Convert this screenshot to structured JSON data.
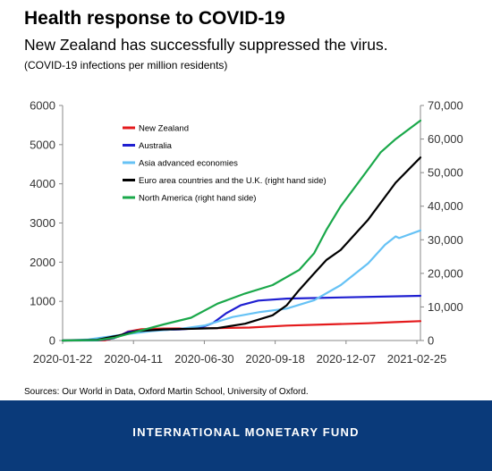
{
  "header": {
    "title": "Health response to COVID-19",
    "subtitle": "New Zealand has successfully suppressed the virus.",
    "note": "(COVID-19 infections per million residents)"
  },
  "source": "Sources: Our World in Data, Oxford Martin School, University of Oxford.",
  "footer": {
    "org": "INTERNATIONAL MONETARY FUND"
  },
  "chart_data": {
    "type": "line",
    "x_ticks": [
      "2020-01-22",
      "2020-04-11",
      "2020-06-30",
      "2020-09-18",
      "2020-12-07",
      "2021-02-25"
    ],
    "x_range": [
      "2020-01-22",
      "2021-03-01"
    ],
    "y_left": {
      "ticks": [
        "0",
        "1000",
        "2000",
        "3000",
        "4000",
        "5000",
        "6000"
      ],
      "range": [
        0,
        6000
      ]
    },
    "y_right": {
      "ticks": [
        "0",
        "10,000",
        "20,000",
        "30,000",
        "40,000",
        "50,000",
        "60,000",
        "70,000"
      ],
      "range": [
        0,
        70000
      ]
    },
    "legend_position": "upper-left",
    "grid": false,
    "series": [
      {
        "name": "New Zealand",
        "axis": "left",
        "color": "#e41a1c",
        "x": [
          "2020-01-22",
          "2020-03-10",
          "2020-03-25",
          "2020-04-05",
          "2020-04-20",
          "2020-05-15",
          "2020-07-01",
          "2020-08-20",
          "2020-10-01",
          "2020-11-15",
          "2021-01-01",
          "2021-02-01",
          "2021-03-01"
        ],
        "y": [
          0,
          5,
          100,
          230,
          290,
          305,
          310,
          330,
          380,
          410,
          440,
          470,
          495
        ]
      },
      {
        "name": "Australia",
        "axis": "left",
        "color": "#1f1fd1",
        "x": [
          "2020-01-22",
          "2020-03-01",
          "2020-03-20",
          "2020-04-05",
          "2020-04-20",
          "2020-06-01",
          "2020-06-25",
          "2020-07-10",
          "2020-07-25",
          "2020-08-10",
          "2020-08-30",
          "2020-10-01",
          "2020-12-01",
          "2021-03-01"
        ],
        "y": [
          0,
          2,
          60,
          220,
          255,
          280,
          320,
          450,
          700,
          900,
          1020,
          1070,
          1100,
          1140
        ]
      },
      {
        "name": "Asia advanced economies",
        "axis": "right",
        "color": "#66c2f5",
        "x": [
          "2020-01-22",
          "2020-02-20",
          "2020-03-10",
          "2020-04-01",
          "2020-05-01",
          "2020-06-01",
          "2020-07-01",
          "2020-08-01",
          "2020-09-01",
          "2020-10-01",
          "2020-11-01",
          "2020-12-01",
          "2021-01-01",
          "2021-01-20",
          "2021-02-01",
          "2021-02-05",
          "2021-03-01"
        ],
        "y": [
          0,
          300,
          1000,
          1800,
          2800,
          3400,
          4500,
          7000,
          8500,
          9500,
          12000,
          16500,
          23000,
          28500,
          31000,
          30500,
          32800
        ]
      },
      {
        "name": "Euro area countries and the U.K. (right hand side)",
        "axis": "right",
        "color": "#000000",
        "x": [
          "2020-01-22",
          "2020-03-01",
          "2020-03-25",
          "2020-04-15",
          "2020-05-15",
          "2020-06-15",
          "2020-07-15",
          "2020-08-15",
          "2020-09-15",
          "2020-10-01",
          "2020-10-15",
          "2020-11-01",
          "2020-11-15",
          "2020-12-01",
          "2021-01-01",
          "2021-02-01",
          "2021-03-01"
        ],
        "y": [
          0,
          200,
          1500,
          2800,
          3300,
          3500,
          3700,
          5000,
          7500,
          10500,
          15000,
          20000,
          24000,
          27000,
          36000,
          47000,
          54500
        ]
      },
      {
        "name": "North America (right hand side)",
        "axis": "right",
        "color": "#1aa84a",
        "x": [
          "2020-01-22",
          "2020-03-01",
          "2020-03-20",
          "2020-04-15",
          "2020-05-15",
          "2020-06-15",
          "2020-07-15",
          "2020-08-15",
          "2020-09-15",
          "2020-10-15",
          "2020-11-01",
          "2020-11-15",
          "2020-12-01",
          "2021-01-01",
          "2021-01-15",
          "2021-02-01",
          "2021-03-01"
        ],
        "y": [
          0,
          100,
          800,
          2700,
          4800,
          6800,
          11000,
          14000,
          16500,
          21000,
          26000,
          33000,
          40000,
          51000,
          56000,
          60000,
          65500
        ]
      }
    ]
  }
}
